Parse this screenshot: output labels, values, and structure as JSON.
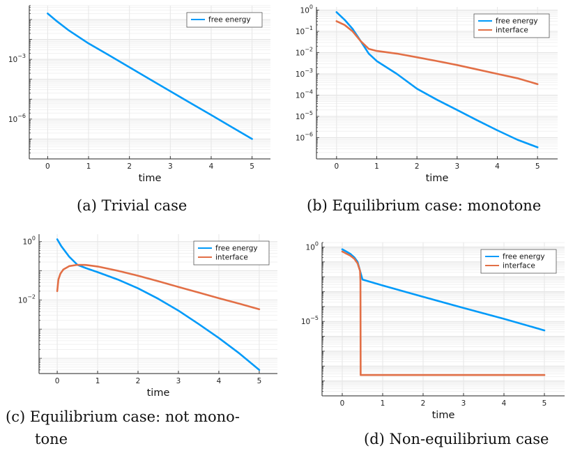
{
  "chart_data": [
    {
      "type": "line",
      "caption": "(a) Trivial case",
      "xlabel": "time",
      "xlim": [
        -0.45,
        5.45
      ],
      "x_ticks": [
        0,
        1,
        2,
        3,
        4,
        5
      ],
      "y_scale": "log",
      "ylim": [
        1e-08,
        0.5
      ],
      "y_ticks": [
        {
          "value": 0.001,
          "base": "10",
          "exp": "−3"
        },
        {
          "value": 1e-06,
          "base": "10",
          "exp": "−6"
        }
      ],
      "grid": true,
      "legend": "top-right",
      "series": [
        {
          "name": "free energy",
          "color": "#009af9",
          "x": [
            0,
            0.2,
            0.5,
            1,
            1.5,
            2,
            2.5,
            3,
            3.5,
            4,
            4.5,
            5
          ],
          "y": [
            0.2,
            0.09,
            0.03,
            0.0063,
            0.0016,
            0.0004,
            0.0001,
            2.5e-05,
            6.3e-06,
            1.6e-06,
            4e-07,
            1e-07
          ]
        }
      ]
    },
    {
      "type": "line",
      "caption": "(b) Equilibrium case: monotone",
      "xlabel": "time",
      "xlim": [
        -0.5,
        5.5
      ],
      "x_ticks": [
        0,
        1,
        2,
        3,
        4,
        5
      ],
      "y_scale": "log",
      "ylim": [
        1e-07,
        1.4
      ],
      "y_ticks": [
        {
          "value": 1,
          "base": "10",
          "exp": "0"
        },
        {
          "value": 0.1,
          "base": "10",
          "exp": "−1"
        },
        {
          "value": 0.01,
          "base": "10",
          "exp": "−2"
        },
        {
          "value": 0.001,
          "base": "10",
          "exp": "−3"
        },
        {
          "value": 0.0001,
          "base": "10",
          "exp": "−4"
        },
        {
          "value": 1e-05,
          "base": "10",
          "exp": "−5"
        },
        {
          "value": 1e-06,
          "base": "10",
          "exp": "−6"
        }
      ],
      "grid": true,
      "legend": "top-right",
      "series": [
        {
          "name": "free energy",
          "color": "#009af9",
          "x": [
            0,
            0.2,
            0.4,
            0.6,
            0.8,
            1,
            1.5,
            2,
            2.5,
            3,
            3.5,
            4,
            4.5,
            5
          ],
          "y": [
            0.8,
            0.35,
            0.13,
            0.035,
            0.009,
            0.004,
            0.001,
            0.0002,
            6e-05,
            2e-05,
            6.5e-06,
            2.2e-06,
            8e-07,
            3.5e-07
          ]
        },
        {
          "name": "interface",
          "color": "#e26f46",
          "x": [
            0,
            0.2,
            0.4,
            0.6,
            0.8,
            1,
            1.5,
            2,
            2.5,
            3,
            3.5,
            4,
            4.5,
            5
          ],
          "y": [
            0.3,
            0.2,
            0.1,
            0.035,
            0.015,
            0.012,
            0.009,
            0.006,
            0.004,
            0.0026,
            0.0016,
            0.001,
            0.00062,
            0.00033
          ]
        }
      ]
    },
    {
      "type": "line",
      "caption_lines": [
        "(c) Equilibrium case:  not mono-",
        "tone"
      ],
      "xlabel": "time",
      "xlim": [
        -0.45,
        5.45
      ],
      "x_ticks": [
        0,
        1,
        2,
        3,
        4,
        5
      ],
      "y_scale": "log",
      "ylim": [
        3e-05,
        1.8
      ],
      "y_ticks": [
        {
          "value": 1,
          "base": "10",
          "exp": "0"
        },
        {
          "value": 0.01,
          "base": "10",
          "exp": "−2"
        }
      ],
      "grid": true,
      "legend": "top-right",
      "series": [
        {
          "name": "free energy",
          "color": "#009af9",
          "x": [
            0,
            0.1,
            0.3,
            0.5,
            0.7,
            1,
            1.5,
            2,
            2.5,
            3,
            3.5,
            4,
            4.5,
            5
          ],
          "y": [
            1.2,
            0.7,
            0.3,
            0.16,
            0.125,
            0.09,
            0.05,
            0.025,
            0.011,
            0.0043,
            0.0015,
            0.0005,
            0.00015,
            4e-05
          ]
        },
        {
          "name": "interface",
          "color": "#e26f46",
          "x": [
            0,
            0.03,
            0.08,
            0.15,
            0.3,
            0.5,
            0.7,
            1,
            1.5,
            2,
            2.5,
            3,
            3.5,
            4,
            4.5,
            5
          ],
          "y": [
            0.02,
            0.05,
            0.08,
            0.11,
            0.145,
            0.16,
            0.158,
            0.14,
            0.1,
            0.068,
            0.044,
            0.028,
            0.018,
            0.0115,
            0.0075,
            0.0048
          ]
        }
      ]
    },
    {
      "type": "line",
      "caption": "(d) Non-equilibrium case",
      "xlabel": "time",
      "xlim": [
        -0.5,
        5.5
      ],
      "x_ticks": [
        0,
        1,
        2,
        3,
        4,
        5
      ],
      "y_scale": "log",
      "ylim": [
        1e-10,
        2
      ],
      "y_ticks": [
        {
          "value": 1,
          "base": "10",
          "exp": "0"
        },
        {
          "value": 1e-05,
          "base": "10",
          "exp": "−5"
        }
      ],
      "grid": true,
      "legend": "top-right",
      "series": [
        {
          "name": "free energy",
          "color": "#009af9",
          "x": [
            0,
            0.1,
            0.2,
            0.3,
            0.38,
            0.45,
            0.5,
            1,
            2,
            3,
            4,
            5
          ],
          "y": [
            0.7,
            0.5,
            0.35,
            0.2,
            0.1,
            0.02,
            0.0065,
            0.0026,
            0.00045,
            8e-05,
            1.5e-05,
            2.5e-06
          ]
        },
        {
          "name": "interface",
          "color": "#e26f46",
          "x": [
            0,
            0.1,
            0.2,
            0.3,
            0.38,
            0.44,
            0.45,
            0.455,
            1,
            2,
            3,
            4,
            5
          ],
          "y": [
            0.5,
            0.36,
            0.26,
            0.16,
            0.08,
            0.025,
            0.005,
            2.5e-09,
            2.5e-09,
            2.5e-09,
            2.5e-09,
            2.5e-09,
            2.5e-09
          ]
        }
      ]
    }
  ]
}
